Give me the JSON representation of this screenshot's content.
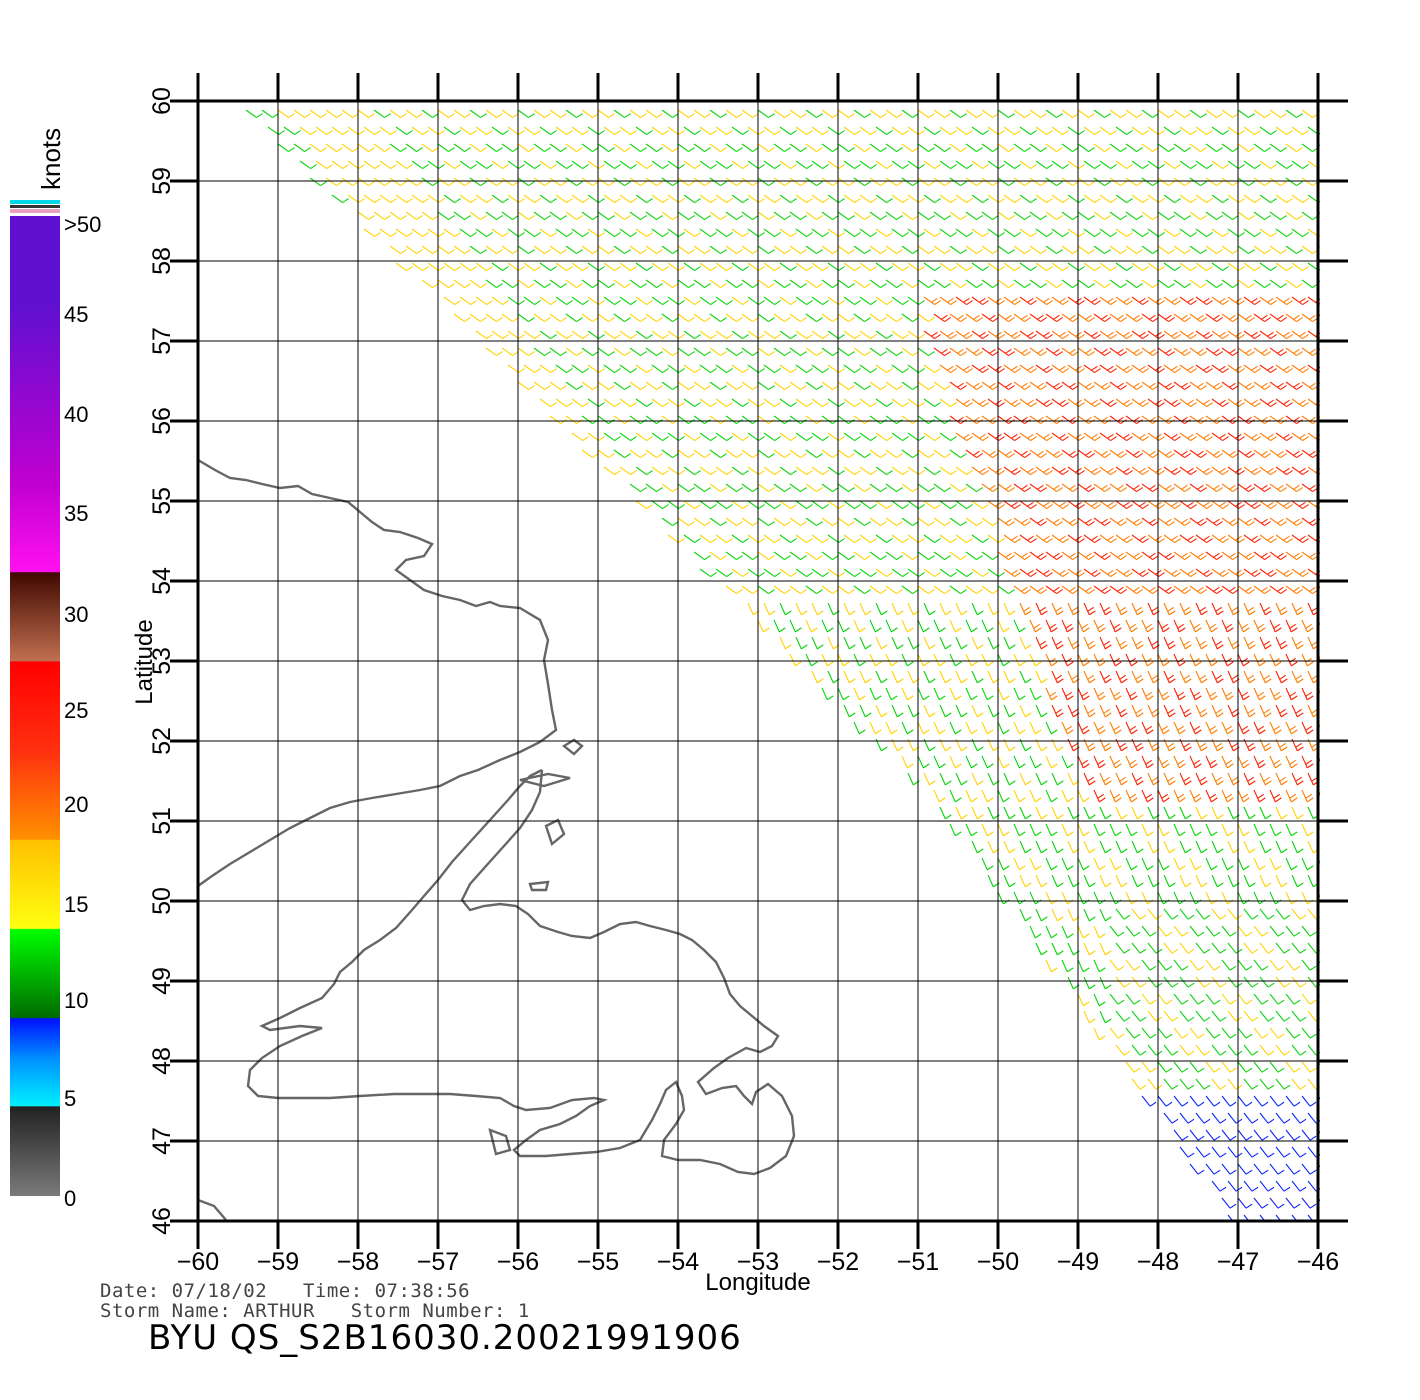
{
  "map": {
    "lon_range": [
      -60,
      -46
    ],
    "lat_range": [
      46,
      60
    ],
    "lon_ticks": [
      "-60",
      "-59",
      "-58",
      "-57",
      "-56",
      "-55",
      "-54",
      "-53",
      "-52",
      "-51",
      "-50",
      "-49",
      "-48",
      "-47",
      "-46"
    ],
    "lat_ticks": [
      "46",
      "47",
      "48",
      "49",
      "50",
      "51",
      "52",
      "53",
      "54",
      "55",
      "56",
      "57",
      "58",
      "59",
      "60"
    ],
    "xlabel": "Longitude",
    "ylabel": "Latitude"
  },
  "legend": {
    "title": "knots",
    "labels": [
      ">50",
      "45",
      "40",
      "35",
      "30",
      "25",
      "20",
      "15",
      "10",
      "5",
      "0"
    ],
    "colors": {
      "gray": "#6a6a6a",
      "cyan": "#00e8ff",
      "blue": "#0a22ff",
      "green": "#0ad40a",
      "yellow": "#ffd400",
      "orange": "#ff7d00",
      "red": "#ff2000",
      "brown": "#6a2a10",
      "magenta": "#ff10e8",
      "purple": "#7a10d0"
    }
  },
  "info": {
    "line1": "Date: 07/18/02   Time: 07:38:56",
    "line2": "Storm Name: ARTHUR   Storm Number: 1",
    "product": "BYU QS_S2B16030.20021991906"
  }
}
